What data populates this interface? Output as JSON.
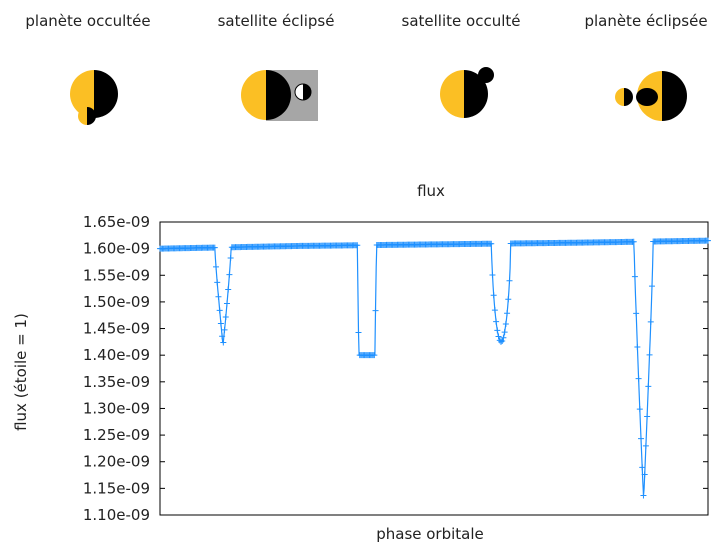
{
  "panels": [
    {
      "label": "planète occultée"
    },
    {
      "label": "satellite éclipsé"
    },
    {
      "label": "satellite occulté"
    },
    {
      "label": "planète éclipsée"
    }
  ],
  "colors": {
    "planet_lit": "#fbbf24",
    "planet_dark": "#000000",
    "shadow_box": "#a6a6a6",
    "series": "#1e90ff"
  },
  "chart_data": {
    "type": "line",
    "title": "flux",
    "xlabel": "phase orbitale",
    "ylabel": "flux (étoile = 1)",
    "ylim": [
      1.1e-09,
      1.65e-09
    ],
    "yticks": [
      1.1e-09,
      1.15e-09,
      1.2e-09,
      1.25e-09,
      1.3e-09,
      1.35e-09,
      1.4e-09,
      1.45e-09,
      1.5e-09,
      1.55e-09,
      1.6e-09,
      1.65e-09
    ],
    "ytick_labels": [
      "1.10e-09",
      "1.15e-09",
      "1.20e-09",
      "1.25e-09",
      "1.30e-09",
      "1.35e-09",
      "1.40e-09",
      "1.45e-09",
      "1.50e-09",
      "1.55e-09",
      "1.60e-09",
      "1.65e-09"
    ],
    "xlim": [
      0,
      1
    ],
    "series": [
      {
        "baseline": [
          [
            0.0,
            1.6e-09
          ],
          [
            0.25,
            1.605e-09
          ],
          [
            0.5,
            1.608e-09
          ],
          [
            0.75,
            1.611e-09
          ],
          [
            1.0,
            1.615e-09
          ]
        ],
        "transits": [
          {
            "start": 0.1,
            "end": 0.13,
            "depth": 1.418e-09,
            "shape": "v"
          },
          {
            "start": 0.36,
            "end": 0.395,
            "depth": 1.4e-09,
            "shape": "flat"
          },
          {
            "start": 0.605,
            "end": 0.64,
            "depth": 1.425e-09,
            "shape": "u"
          },
          {
            "start": 0.865,
            "end": 0.9,
            "depth": 1.13e-09,
            "shape": "v"
          }
        ]
      }
    ]
  }
}
